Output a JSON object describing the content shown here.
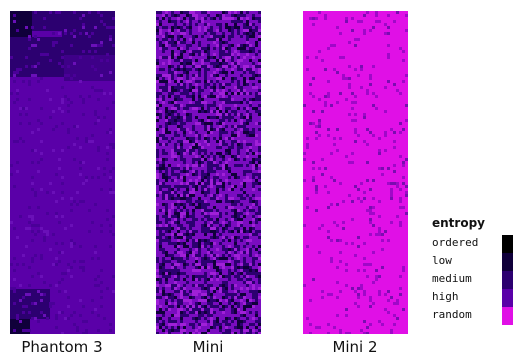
{
  "chart_data": {
    "type": "heatmap",
    "title": "",
    "panels": [
      {
        "label": "Phantom 3",
        "dominant_level": "high",
        "texture": "mostly uniform with darker blocks in upper-left and near bottom"
      },
      {
        "label": "Mini",
        "dominant_level": "high",
        "texture": "mixed high and medium with scattered darker speckles"
      },
      {
        "label": "Mini 2",
        "dominant_level": "random",
        "texture": "mostly random with faint speckles"
      }
    ],
    "legend": {
      "title": "entropy",
      "position": "bottom-right",
      "entries": [
        {
          "label": "ordered",
          "color": "#000000"
        },
        {
          "label": "low",
          "color": "#10003a"
        },
        {
          "label": "medium",
          "color": "#2c0070"
        },
        {
          "label": "high",
          "color": "#5a00a8"
        },
        {
          "label": "random",
          "color": "#e010e6"
        }
      ]
    }
  }
}
